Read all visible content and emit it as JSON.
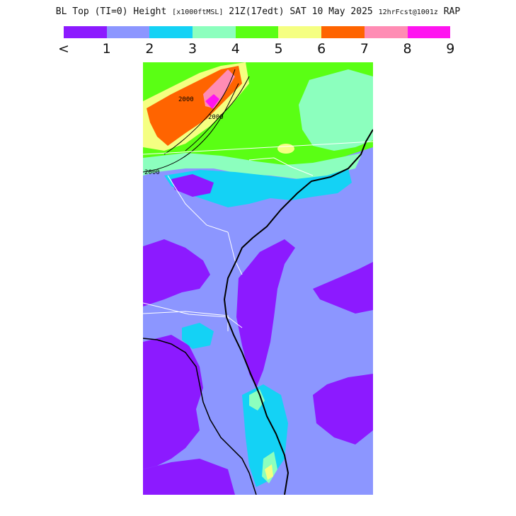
{
  "title": {
    "main": "BL Top (TI=0) Height",
    "units": "[x1000ftMSL]",
    "valid": "21Z(17edt) SAT 10 May 2025",
    "forecast": "12hrFcst@1001z",
    "model": "RAP"
  },
  "legend": {
    "colors": [
      "#8c1aff",
      "#8c96ff",
      "#14d2f5",
      "#8cffbe",
      "#5aff14",
      "#f5ff82",
      "#ff6400",
      "#ff8cb4",
      "#ff14f0"
    ],
    "labels": [
      "<",
      "1",
      "2",
      "3",
      "4",
      "5",
      "6",
      "7",
      "8",
      "9"
    ]
  },
  "map": {
    "region": "Southeast US / Florida",
    "contour_labels": [
      "2000",
      "2000",
      "2000"
    ],
    "ocean_color": "#8c96ff"
  }
}
